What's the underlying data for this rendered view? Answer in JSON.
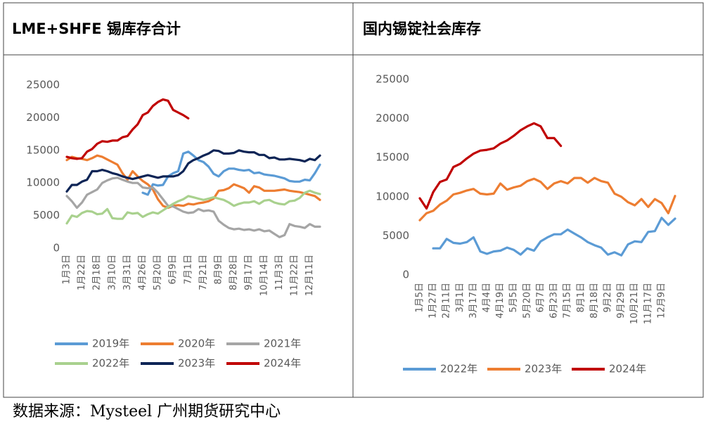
{
  "chart_data": [
    {
      "type": "line",
      "title": "LME+SHFE 锡库存合计",
      "categories": [
        "1月3日",
        null,
        null,
        "1月22日",
        null,
        null,
        "2月18日",
        null,
        null,
        "3月10日",
        null,
        null,
        "3月31日",
        null,
        null,
        "4月26日",
        null,
        null,
        "5月20日",
        null,
        null,
        "6月9日",
        null,
        null,
        "7月1日",
        null,
        null,
        "7月21日",
        null,
        null,
        "8月9日",
        null,
        null,
        "8月28日",
        null,
        null,
        "9月17日",
        null,
        null,
        "10月14日",
        null,
        null,
        "11月3日",
        null,
        null,
        "11月22日",
        null,
        null,
        "12月11日",
        null,
        null
      ],
      "ylim": [
        0,
        25000
      ],
      "yticks": [
        0,
        5000,
        10000,
        15000,
        20000,
        25000
      ],
      "series": [
        {
          "name": "2019年",
          "color": "#5b9bd5",
          "values": [
            null,
            null,
            null,
            null,
            null,
            null,
            null,
            null,
            null,
            null,
            null,
            null,
            null,
            null,
            null,
            8500,
            8200,
            9800,
            9600,
            9700,
            11000,
            11500,
            11800,
            14500,
            14800,
            14200,
            13500,
            13200,
            12500,
            11400,
            11000,
            11800,
            12200,
            12200,
            12000,
            11900,
            12000,
            11500,
            11600,
            11300,
            11200,
            11100,
            10900,
            10700,
            10300,
            10200,
            10200,
            10500,
            10400,
            11500,
            12800
          ]
        },
        {
          "name": "2020年",
          "color": "#ed7d31",
          "values": [
            13500,
            14000,
            13800,
            13700,
            13500,
            13800,
            14200,
            14000,
            13600,
            13200,
            12800,
            11500,
            10500,
            11800,
            11000,
            10300,
            9800,
            9000,
            7500,
            6500,
            6200,
            6500,
            6600,
            6500,
            6800,
            6700,
            6900,
            7000,
            7200,
            7600,
            8800,
            8900,
            9200,
            9800,
            9500,
            9200,
            8500,
            9500,
            9300,
            8800,
            8800,
            8800,
            8900,
            9000,
            8800,
            8700,
            8600,
            8400,
            8200,
            8000,
            7400
          ]
        },
        {
          "name": "2021年",
          "color": "#a5a5a5",
          "values": [
            8000,
            7200,
            6200,
            7000,
            8200,
            8600,
            9000,
            10000,
            10400,
            10700,
            10800,
            10500,
            10200,
            10000,
            10000,
            9300,
            9200,
            9300,
            8500,
            7500,
            6500,
            6400,
            6000,
            5600,
            5400,
            5500,
            6000,
            5700,
            5800,
            5600,
            4200,
            3600,
            3100,
            2900,
            3000,
            2800,
            2900,
            2700,
            2900,
            2600,
            2700,
            2200,
            1700,
            2000,
            3700,
            3400,
            3300,
            3100,
            3700,
            3300,
            3300
          ]
        },
        {
          "name": "2022年",
          "color": "#a9d18e",
          "values": [
            3800,
            5000,
            4800,
            5400,
            5700,
            5600,
            5200,
            5300,
            6000,
            4600,
            4500,
            4500,
            5500,
            5300,
            5400,
            4800,
            5200,
            5500,
            5300,
            5800,
            6300,
            6800,
            7200,
            7500,
            8000,
            7800,
            7600,
            7400,
            7600,
            7800,
            7600,
            7400,
            7000,
            6500,
            6800,
            7000,
            7000,
            7200,
            6800,
            7300,
            7400,
            7000,
            6800,
            6700,
            7200,
            7300,
            7700,
            8500,
            8800,
            8500,
            8300
          ]
        },
        {
          "name": "2023年",
          "color": "#0e2556",
          "values": [
            8700,
            9700,
            9700,
            10200,
            10500,
            11800,
            11800,
            12000,
            11800,
            11500,
            11300,
            11000,
            10800,
            10600,
            10800,
            11000,
            11200,
            11000,
            10800,
            11000,
            11000,
            11000,
            11200,
            11800,
            13000,
            13500,
            13800,
            14200,
            14500,
            15000,
            14900,
            14500,
            14500,
            14600,
            15000,
            14800,
            14700,
            14700,
            14300,
            14300,
            13800,
            13900,
            13600,
            13600,
            13700,
            13600,
            13500,
            13300,
            13700,
            13500,
            14200
          ]
        },
        {
          "name": "2024年",
          "color": "#c00000",
          "values": [
            14000,
            13800,
            13700,
            13800,
            14800,
            15200,
            16000,
            16400,
            16300,
            16500,
            16500,
            17000,
            17200,
            18200,
            19000,
            20400,
            20800,
            21800,
            22400,
            22800,
            22600,
            21200,
            20800,
            20400,
            19900,
            null,
            null,
            null,
            null,
            null,
            null,
            null,
            null,
            null,
            null,
            null,
            null,
            null,
            null,
            null,
            null,
            null,
            null,
            null,
            null,
            null,
            null,
            null,
            null,
            null,
            null
          ]
        }
      ]
    },
    {
      "type": "line",
      "title": "国内锡锭社会库存",
      "categories": [
        "1月5日",
        null,
        "1月27日",
        null,
        "2月11日",
        null,
        "3月1日",
        null,
        "3月17日",
        null,
        "4月4日",
        null,
        "4月19日",
        null,
        "5月5日",
        null,
        "5月20日",
        null,
        "6月7日",
        null,
        "6月23日",
        null,
        "7月15日",
        null,
        "8月1日",
        null,
        "8月18日",
        null,
        "9月2日",
        null,
        "9月29日",
        null,
        "10月21日",
        null,
        "11月17日",
        null,
        "12月9日",
        null,
        null
      ],
      "ylim": [
        0,
        25000
      ],
      "yticks": [
        0,
        5000,
        10000,
        15000,
        20000,
        25000
      ],
      "series": [
        {
          "name": "2022年",
          "color": "#5b9bd5",
          "values": [
            null,
            null,
            3400,
            3400,
            4600,
            4100,
            4000,
            4200,
            4800,
            3000,
            2700,
            3000,
            3100,
            3500,
            3200,
            2600,
            3400,
            3100,
            4300,
            4800,
            5200,
            5200,
            5800,
            5300,
            4800,
            4200,
            3800,
            3500,
            2600,
            2900,
            2500,
            3900,
            4300,
            4200,
            5500,
            5600,
            7300,
            6400,
            7200
          ]
        },
        {
          "name": "2023年",
          "color": "#ed7d31",
          "values": [
            7000,
            7900,
            8200,
            9000,
            9500,
            10300,
            10500,
            10800,
            11000,
            10400,
            10300,
            10400,
            11700,
            10900,
            11200,
            11400,
            12000,
            12300,
            11900,
            11000,
            11700,
            12000,
            11700,
            12400,
            12400,
            11800,
            12400,
            12000,
            11800,
            10400,
            10000,
            9300,
            8900,
            9700,
            8700,
            9700,
            9200,
            7900,
            10100
          ]
        },
        {
          "name": "2024年",
          "color": "#c00000",
          "values": [
            9800,
            8500,
            10600,
            11900,
            12200,
            13800,
            14200,
            14900,
            15500,
            15900,
            16000,
            16200,
            16800,
            17200,
            17800,
            18500,
            19000,
            19400,
            19000,
            17500,
            17500,
            16500,
            null,
            null,
            null,
            null,
            null,
            null,
            null,
            null,
            null,
            null,
            null,
            null,
            null,
            null,
            null,
            null,
            null
          ]
        }
      ]
    }
  ],
  "source": "数据来源：Mysteel  广州期货研究中心"
}
